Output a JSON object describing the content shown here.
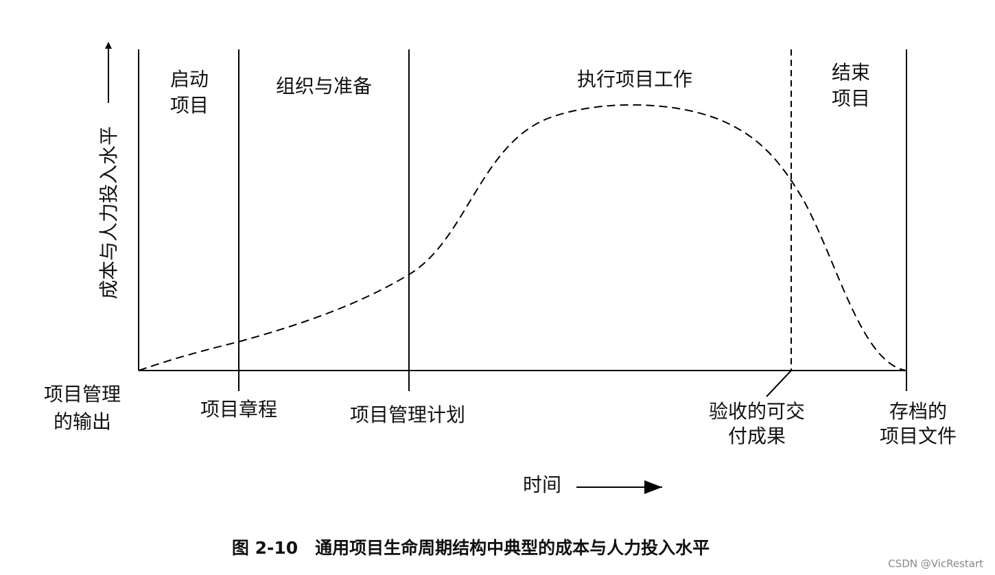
{
  "y_axis_label": "成本与人力投入水平",
  "x_axis_label": "时间",
  "phases": [
    {
      "lines": [
        "启动",
        "项目"
      ]
    },
    {
      "lines": [
        "组织与准备"
      ]
    },
    {
      "lines": [
        "执行项目工作"
      ]
    },
    {
      "lines": [
        "结束",
        "项目"
      ]
    }
  ],
  "outputs_heading": [
    "项目管理",
    "的输出"
  ],
  "outputs": [
    {
      "lines": [
        "项目章程"
      ]
    },
    {
      "lines": [
        "项目管理计划"
      ]
    },
    {
      "lines": [
        "验收的可交",
        "付成果"
      ]
    },
    {
      "lines": [
        "存档的",
        "项目文件"
      ]
    }
  ],
  "caption": "图 2-10　通用项目生命周期结构中典型的成本与人力投入水平",
  "watermark": "CSDN @VicRestart"
}
